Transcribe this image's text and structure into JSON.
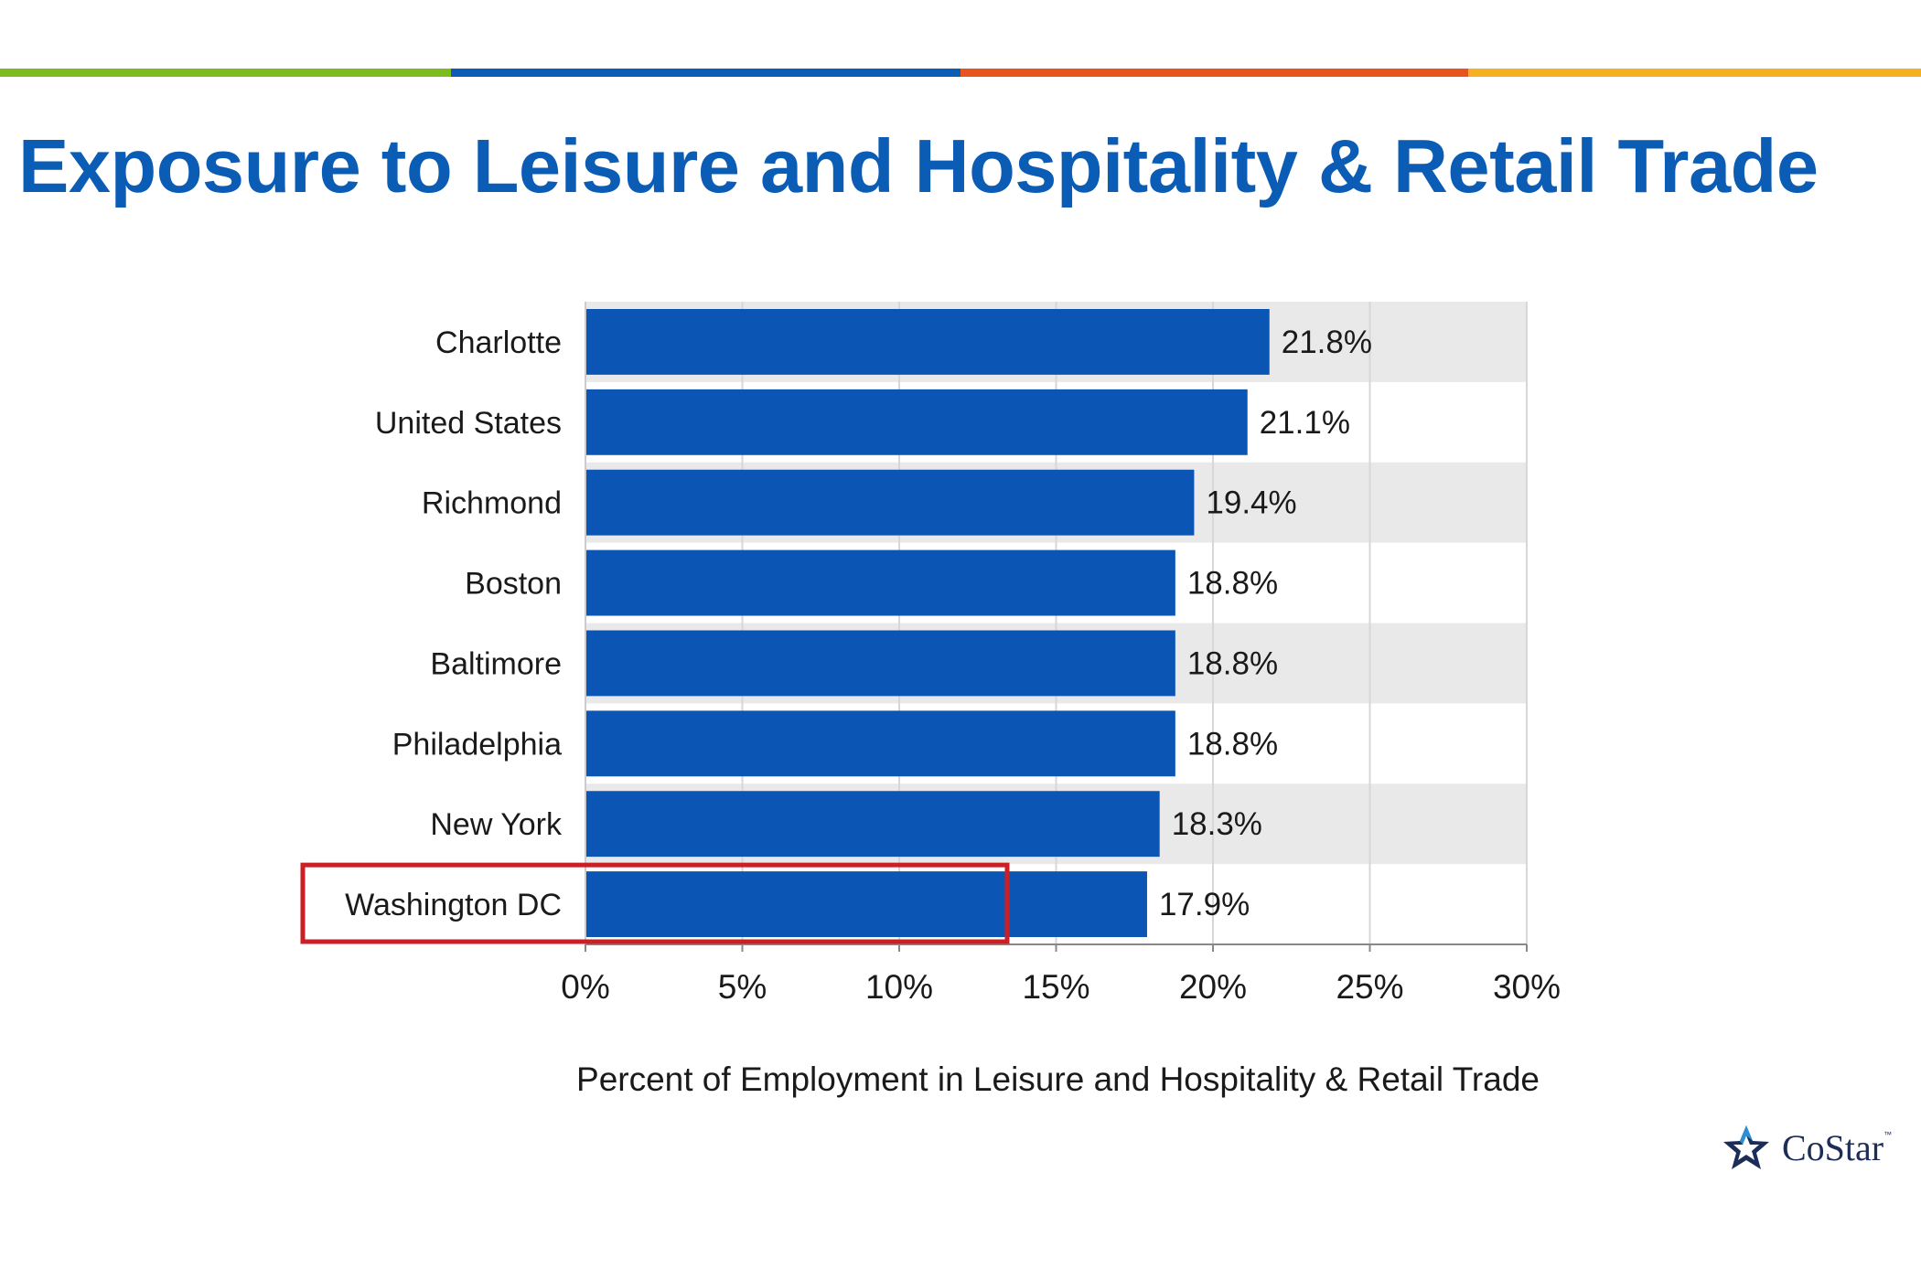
{
  "slide": {
    "title": "Exposure to Leisure and Hospitality & Retail Trade",
    "accent_colors": [
      "#7dbb1f",
      "#0b5cb5",
      "#e8531f",
      "#f5b21f"
    ]
  },
  "chart_data": {
    "type": "bar",
    "orientation": "horizontal",
    "categories": [
      "Charlotte",
      "United States",
      "Richmond",
      "Boston",
      "Baltimore",
      "Philadelphia",
      "New York",
      "Washington DC"
    ],
    "values": [
      21.8,
      21.1,
      19.4,
      18.8,
      18.8,
      18.8,
      18.3,
      17.9
    ],
    "value_labels": [
      "21.8%",
      "21.1%",
      "19.4%",
      "18.8%",
      "18.8%",
      "18.8%",
      "18.3%",
      "17.9%"
    ],
    "xlabel": "Percent of Employment in Leisure and Hospitality & Retail Trade",
    "ylabel": "",
    "xlim": [
      0,
      30
    ],
    "xticks": [
      0,
      5,
      10,
      15,
      20,
      25,
      30
    ],
    "xtick_labels": [
      "0%",
      "5%",
      "10%",
      "15%",
      "20%",
      "25%",
      "30%"
    ],
    "highlighted_category": "Washington DC",
    "grid": true,
    "bar_color": "#0b55b5",
    "highlight_color": "#cc1f25",
    "band_color": "#e9e9e9"
  },
  "logo": {
    "text": "CoStar",
    "tm": "™",
    "colors": [
      "#1d2d5a",
      "#2b8fd6"
    ]
  }
}
